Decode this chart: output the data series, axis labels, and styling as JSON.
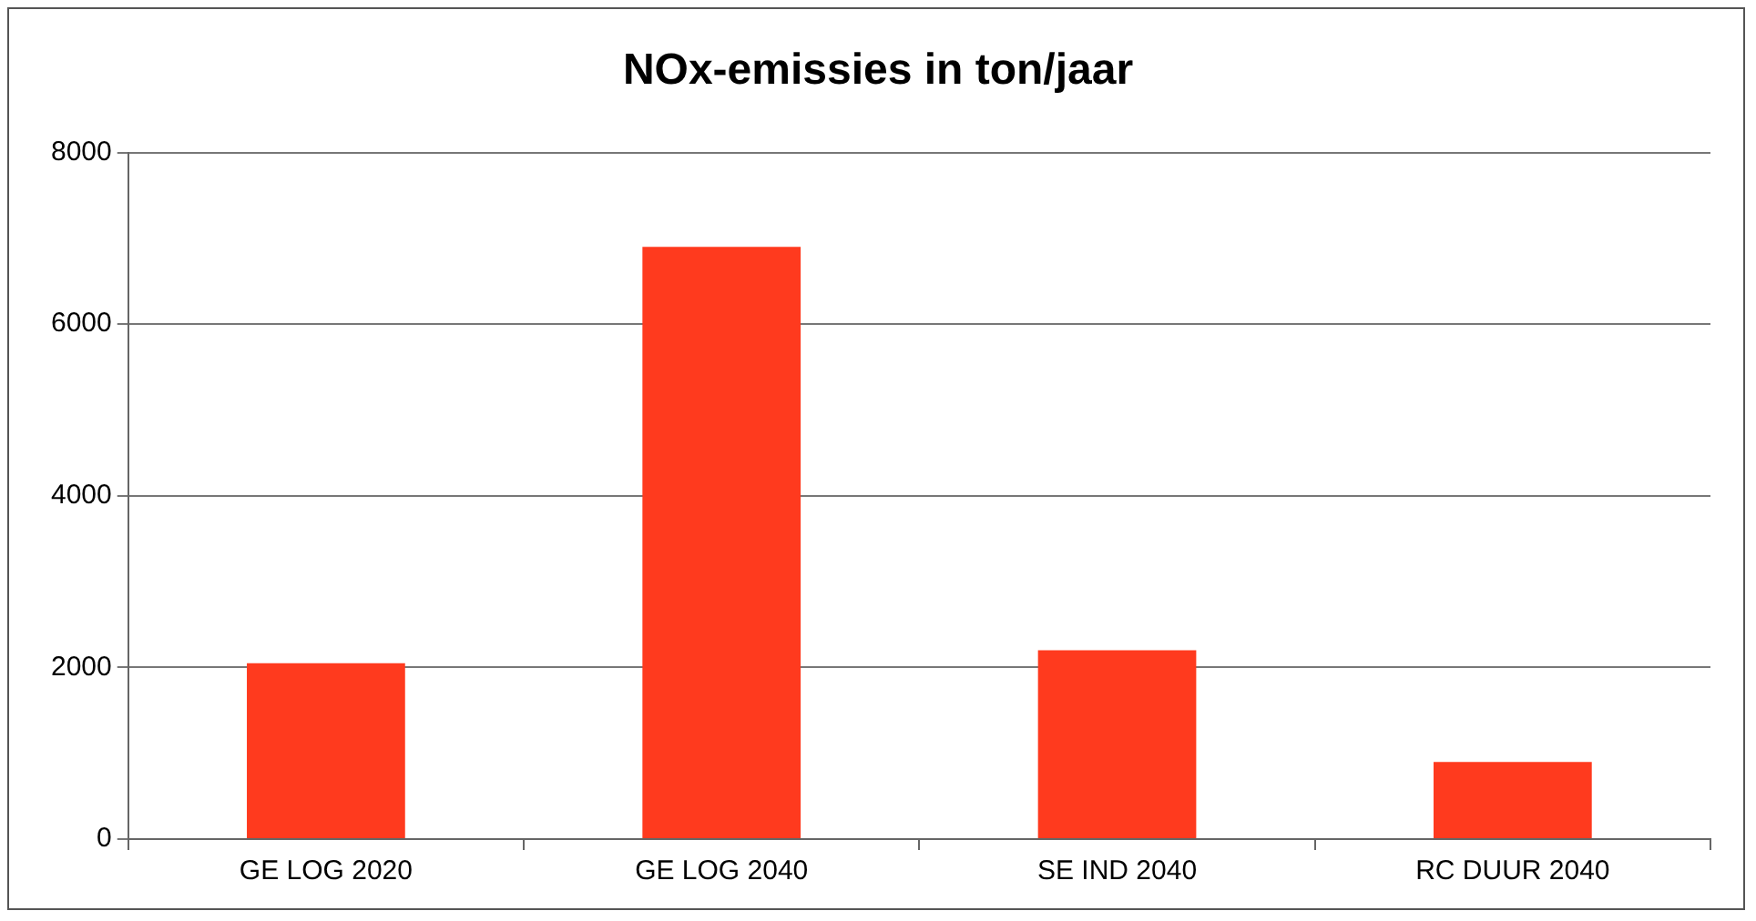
{
  "chart_data": {
    "type": "bar",
    "title": "NOx-emissies in ton/jaar",
    "categories": [
      "GE LOG 2020",
      "GE LOG 2040",
      "SE IND 2040",
      "RC DUUR 2040"
    ],
    "values": [
      2050,
      6900,
      2200,
      900
    ],
    "color": "#ff3a1e",
    "ylim": [
      0,
      8000
    ],
    "yticks": [
      0,
      2000,
      4000,
      6000,
      8000
    ],
    "grid": "y"
  }
}
